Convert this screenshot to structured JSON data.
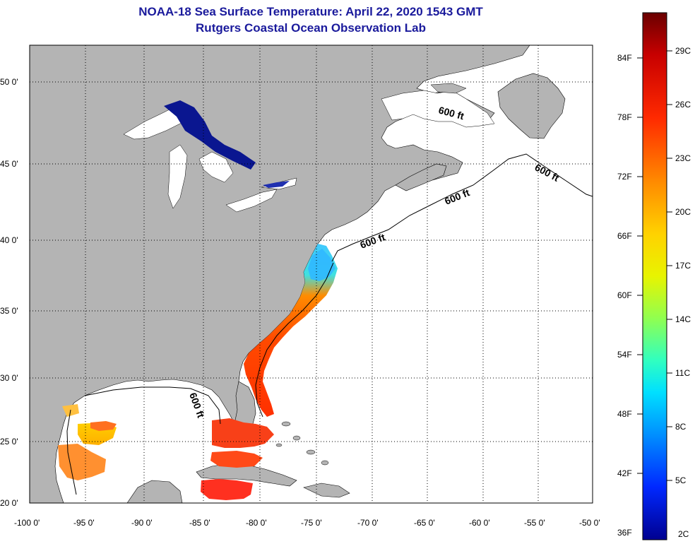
{
  "title": {
    "line1": "NOAA-18 Sea Surface Temperature:  April 22, 2020 1543 GMT",
    "line2": "Rutgers Coastal Ocean Observation Lab"
  },
  "map": {
    "lat_labels": [
      "50 0'",
      "45 0'",
      "40 0'",
      "35 0'",
      "30 0'",
      "25 0'",
      "20 0'"
    ],
    "lon_labels": [
      "-100 0'",
      "-95 0'",
      "-90 0'",
      "-85 0'",
      "-80 0'",
      "-75 0'",
      "-70 0'",
      "-65 0'",
      "-60 0'",
      "-55 0'",
      "-50 0'"
    ],
    "isobath_labels": [
      "600 ft",
      "600 ft",
      "600 ft",
      "600 ft",
      "600 ft"
    ],
    "colors": {
      "land": "#b4b4b4",
      "ocean": "#ffffff",
      "grid": "#000000"
    }
  },
  "colorbar": {
    "fahrenheit": [
      "84F",
      "78F",
      "72F",
      "66F",
      "60F",
      "54F",
      "48F",
      "42F",
      "36F"
    ],
    "celsius": [
      "29C",
      "26C",
      "23C",
      "20C",
      "17C",
      "14C",
      "11C",
      "8C",
      "5C",
      "2C"
    ],
    "colors": [
      "#7a0000",
      "#d40000",
      "#ff3c00",
      "#ff8c00",
      "#ffd000",
      "#f4f400",
      "#a0ff40",
      "#40ffb0",
      "#00e8ff",
      "#0090ff",
      "#0030ff",
      "#000096"
    ]
  }
}
